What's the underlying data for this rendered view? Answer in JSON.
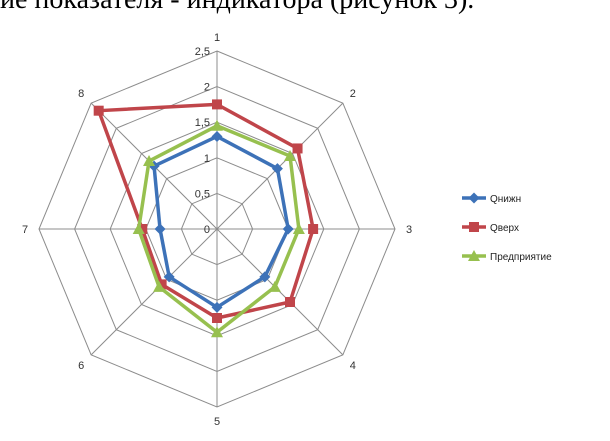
{
  "header": {
    "text": "ие показателя - индикатора (рисунок 3)."
  },
  "chart_data": {
    "type": "radar",
    "categories": [
      "1",
      "2",
      "3",
      "4",
      "5",
      "6",
      "7",
      "8"
    ],
    "rmin": 0,
    "rmax": 2.5,
    "ticks": [
      "0",
      "0,5",
      "1",
      "1,5",
      "2",
      "2,5"
    ],
    "tick_values": [
      0,
      0.5,
      1,
      1.5,
      2,
      2.5
    ],
    "grid": true,
    "legend_position": "right",
    "series": [
      {
        "name": "Qнижн",
        "color": "#3d72b8",
        "marker": "diamond",
        "values": [
          1.3,
          1.2,
          1.0,
          0.95,
          1.1,
          0.95,
          0.8,
          1.25
        ]
      },
      {
        "name": "Qверх",
        "color": "#c0454a",
        "marker": "square",
        "values": [
          1.75,
          1.6,
          1.35,
          1.45,
          1.25,
          1.1,
          1.05,
          2.35
        ]
      },
      {
        "name": "Предприятие",
        "color": "#97c04f",
        "marker": "triangle",
        "values": [
          1.45,
          1.45,
          1.15,
          1.15,
          1.45,
          1.15,
          1.1,
          1.35
        ]
      }
    ]
  }
}
